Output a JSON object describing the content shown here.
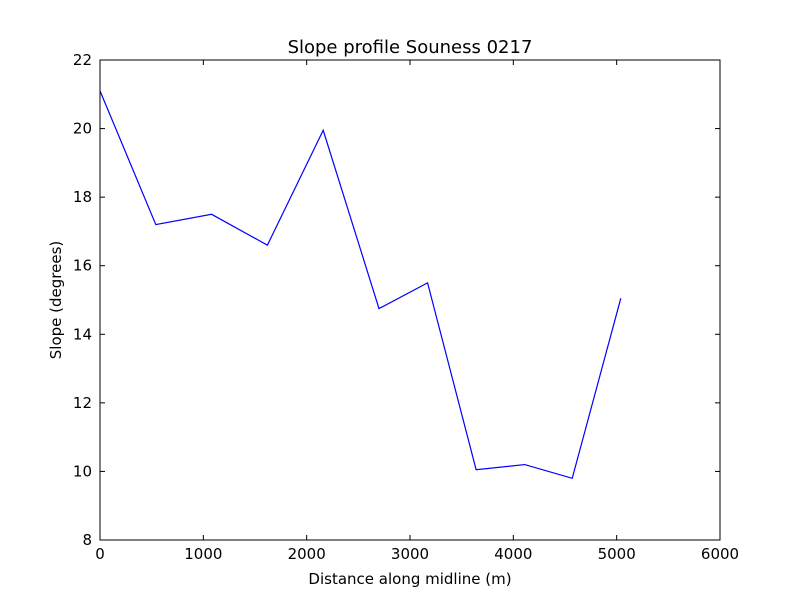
{
  "chart_data": {
    "type": "line",
    "title": "Slope profile Souness 0217",
    "xlabel": "Distance along midline (m)",
    "ylabel": "Slope (degrees)",
    "xlim": [
      0,
      6000
    ],
    "ylim": [
      8,
      22
    ],
    "xticks": [
      0,
      1000,
      2000,
      3000,
      4000,
      5000,
      6000
    ],
    "yticks": [
      8,
      10,
      12,
      14,
      16,
      18,
      20,
      22
    ],
    "grid": false,
    "legend": "none",
    "series": [
      {
        "color": "#0000ff",
        "x": [
          0,
          540,
          1080,
          1620,
          2160,
          2700,
          3170,
          3640,
          4110,
          4570,
          5040
        ],
        "y": [
          21.1,
          17.2,
          17.5,
          16.6,
          19.95,
          14.75,
          15.5,
          10.05,
          10.2,
          9.8,
          15.05
        ]
      }
    ]
  }
}
